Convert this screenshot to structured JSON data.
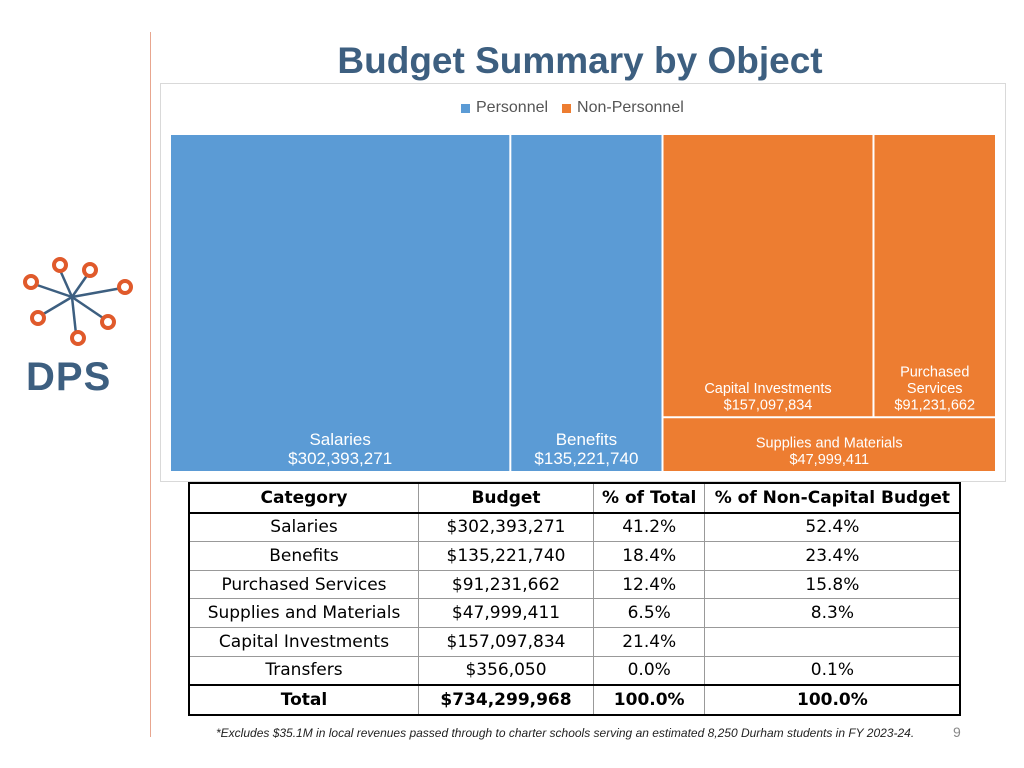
{
  "slide": {
    "title": "Budget Summary by Object",
    "logo_text": "DPS",
    "footnote": "*Excludes $35.1M in local revenues passed through to charter schools serving an estimated 8,250 Durham students in FY 2023-24.",
    "page_number": "9"
  },
  "colors": {
    "personnel": "#5b9bd5",
    "non_personnel": "#ed7d31",
    "title": "#3d5f80",
    "logo_orange": "#e05a2b"
  },
  "chart_data": {
    "type": "treemap",
    "legend": [
      {
        "name": "Personnel",
        "color": "#5b9bd5"
      },
      {
        "name": "Non-Personnel",
        "color": "#ed7d31"
      }
    ],
    "legend_position": "top-center",
    "items": [
      {
        "label": "Salaries",
        "value_label": "$302,393,271",
        "value": 302393271,
        "group": "Personnel"
      },
      {
        "label": "Benefits",
        "value_label": "$135,221,740",
        "value": 135221740,
        "group": "Personnel"
      },
      {
        "label": "Capital Investments",
        "value_label": "$157,097,834",
        "value": 157097834,
        "group": "Non-Personnel"
      },
      {
        "label": "Purchased Services",
        "value_label": "$91,231,662",
        "value": 91231662,
        "group": "Non-Personnel"
      },
      {
        "label": "Supplies and Materials",
        "value_label": "$47,999,411",
        "value": 47999411,
        "group": "Non-Personnel"
      }
    ]
  },
  "table": {
    "headers": [
      "Category",
      "Budget",
      "% of Total",
      "% of Non-Capital Budget"
    ],
    "rows": [
      [
        "Salaries",
        "$302,393,271",
        "41.2%",
        "52.4%"
      ],
      [
        "Benefits",
        "$135,221,740",
        "18.4%",
        "23.4%"
      ],
      [
        "Purchased Services",
        "$91,231,662",
        "12.4%",
        "15.8%"
      ],
      [
        "Supplies and Materials",
        "$47,999,411",
        "6.5%",
        "8.3%"
      ],
      [
        "Capital Investments",
        "$157,097,834",
        "21.4%",
        ""
      ],
      [
        "Transfers",
        "$356,050",
        "0.0%",
        "0.1%"
      ]
    ],
    "total": [
      "Total",
      "$734,299,968",
      "100.0%",
      "100.0%"
    ]
  }
}
